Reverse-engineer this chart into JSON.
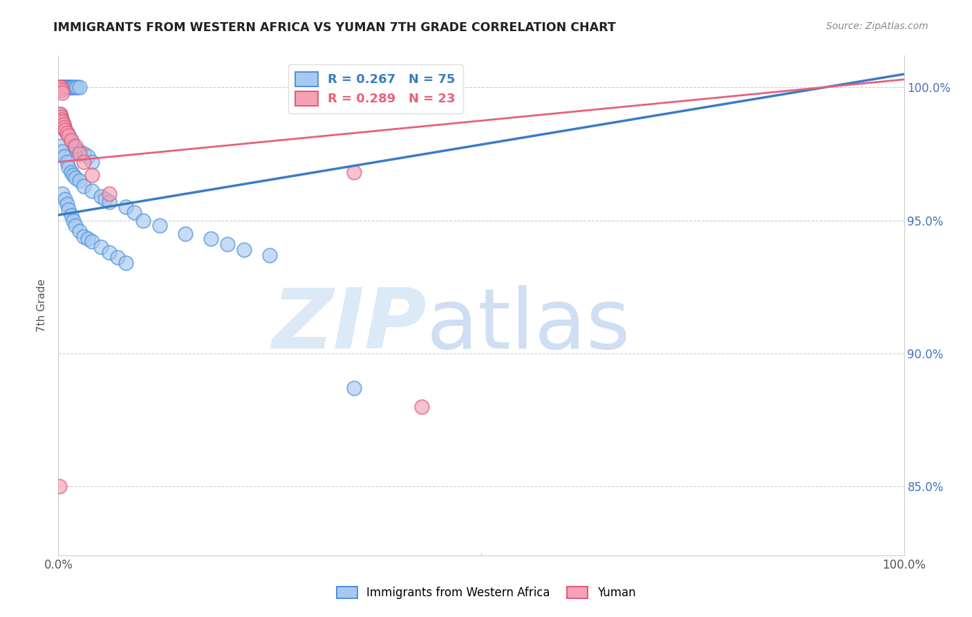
{
  "title": "IMMIGRANTS FROM WESTERN AFRICA VS YUMAN 7TH GRADE CORRELATION CHART",
  "source": "Source: ZipAtlas.com",
  "ylabel": "7th Grade",
  "legend_blue": "R = 0.267   N = 75",
  "legend_pink": "R = 0.289   N = 23",
  "blue_face": "#A8C8F0",
  "blue_edge": "#4A90D9",
  "pink_face": "#F4A0B5",
  "pink_edge": "#E05878",
  "blue_line": "#3A7CC3",
  "pink_line": "#E8607A",
  "watermark_zip_color": "#C8DCF0",
  "watermark_atlas_color": "#B0C8E8",
  "right_tick_color": "#4472C4",
  "blue_scatter_x": [
    0.001,
    0.002,
    0.003,
    0.004,
    0.005,
    0.006,
    0.007,
    0.008,
    0.009,
    0.01,
    0.011,
    0.012,
    0.013,
    0.014,
    0.015,
    0.016,
    0.018,
    0.02,
    0.022,
    0.025,
    0.002,
    0.003,
    0.004,
    0.005,
    0.006,
    0.007,
    0.008,
    0.01,
    0.012,
    0.015,
    0.018,
    0.02,
    0.025,
    0.03,
    0.035,
    0.04,
    0.003,
    0.005,
    0.007,
    0.01,
    0.012,
    0.015,
    0.018,
    0.02,
    0.025,
    0.03,
    0.04,
    0.05,
    0.055,
    0.06,
    0.005,
    0.008,
    0.01,
    0.012,
    0.015,
    0.018,
    0.02,
    0.025,
    0.03,
    0.035,
    0.04,
    0.05,
    0.06,
    0.07,
    0.08,
    0.08,
    0.09,
    0.1,
    0.12,
    0.15,
    0.18,
    0.2,
    0.22,
    0.25,
    0.35
  ],
  "blue_scatter_y": [
    1.0,
    1.0,
    1.0,
    1.0,
    1.0,
    1.0,
    1.0,
    1.0,
    1.0,
    1.0,
    1.0,
    1.0,
    1.0,
    1.0,
    1.0,
    1.0,
    1.0,
    1.0,
    1.0,
    1.0,
    0.99,
    0.989,
    0.988,
    0.987,
    0.986,
    0.985,
    0.984,
    0.983,
    0.982,
    0.98,
    0.978,
    0.977,
    0.976,
    0.975,
    0.974,
    0.972,
    0.978,
    0.976,
    0.974,
    0.972,
    0.97,
    0.968,
    0.967,
    0.966,
    0.965,
    0.963,
    0.961,
    0.959,
    0.958,
    0.957,
    0.96,
    0.958,
    0.956,
    0.954,
    0.952,
    0.95,
    0.948,
    0.946,
    0.944,
    0.943,
    0.942,
    0.94,
    0.938,
    0.936,
    0.934,
    0.955,
    0.953,
    0.95,
    0.948,
    0.945,
    0.943,
    0.941,
    0.939,
    0.937,
    0.887
  ],
  "pink_scatter_x": [
    0.001,
    0.002,
    0.003,
    0.004,
    0.005,
    0.002,
    0.003,
    0.004,
    0.005,
    0.006,
    0.007,
    0.008,
    0.01,
    0.012,
    0.015,
    0.02,
    0.025,
    0.03,
    0.04,
    0.001,
    0.35,
    0.06,
    0.43
  ],
  "pink_scatter_y": [
    1.0,
    1.0,
    1.0,
    0.999,
    0.998,
    0.99,
    0.989,
    0.988,
    0.987,
    0.986,
    0.985,
    0.984,
    0.983,
    0.982,
    0.98,
    0.978,
    0.975,
    0.972,
    0.967,
    0.85,
    0.968,
    0.96,
    0.88
  ],
  "blue_trend_x0": 0.0,
  "blue_trend_y0": 0.952,
  "blue_trend_x1": 1.0,
  "blue_trend_y1": 1.005,
  "pink_trend_x0": 0.0,
  "pink_trend_y0": 0.972,
  "pink_trend_x1": 1.0,
  "pink_trend_y1": 1.003,
  "xlim": [
    0.0,
    1.0
  ],
  "ylim": [
    0.824,
    1.012
  ],
  "yticks": [
    0.85,
    0.9,
    0.95,
    1.0
  ],
  "background": "#ffffff"
}
